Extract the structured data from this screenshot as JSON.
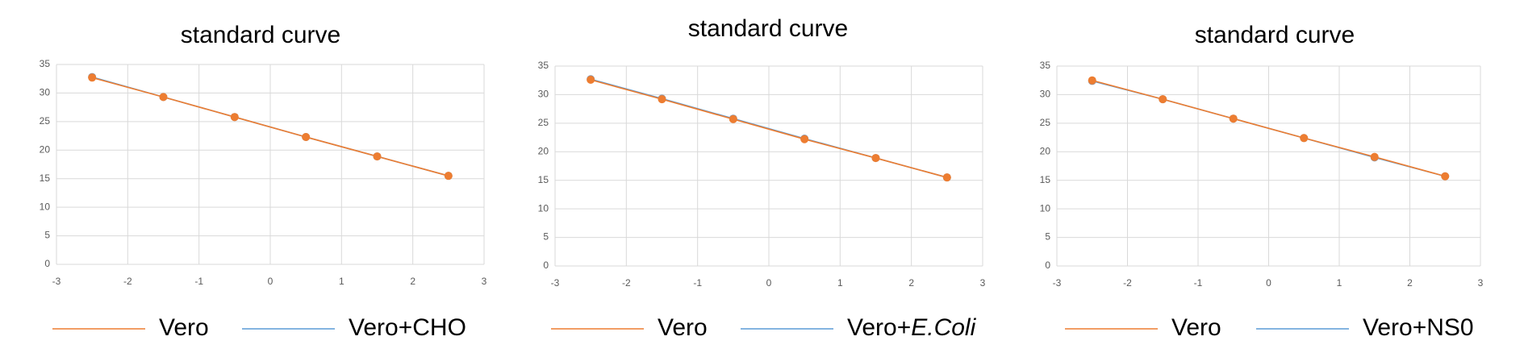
{
  "colors": {
    "vero": "#ED7D31",
    "comparison": "#5B9BD5",
    "grid": "#D9D9D9",
    "axis": "#BFBFBF",
    "marker_comparison": "#8497B0"
  },
  "chart_data": [
    {
      "type": "scatter",
      "title": "standard curve",
      "xlim": [
        -3,
        3
      ],
      "ylim": [
        0,
        35
      ],
      "x_ticks": [
        -3,
        -2,
        -1,
        0,
        1,
        2,
        3
      ],
      "y_ticks": [
        0,
        5,
        10,
        15,
        20,
        25,
        30,
        35
      ],
      "grid": true,
      "legend": "bottom",
      "series": [
        {
          "name": "Vero",
          "x": [
            -2.5,
            -1.5,
            -0.5,
            0.5,
            1.5,
            2.5
          ],
          "y": [
            32.7,
            29.3,
            25.8,
            22.3,
            18.9,
            15.5
          ]
        },
        {
          "name": "Vero+CHO",
          "x": [
            -2.5,
            -1.5,
            -0.5,
            0.5,
            1.5,
            2.5
          ],
          "y": [
            32.8,
            29.3,
            25.8,
            22.3,
            18.9,
            15.5
          ]
        }
      ]
    },
    {
      "type": "scatter",
      "title": "standard curve",
      "xlim": [
        -3,
        3
      ],
      "ylim": [
        0,
        35
      ],
      "x_ticks": [
        -3,
        -2,
        -1,
        0,
        1,
        2,
        3
      ],
      "y_ticks": [
        0,
        5,
        10,
        15,
        20,
        25,
        30,
        35
      ],
      "grid": true,
      "legend": "bottom",
      "series": [
        {
          "name": "Vero",
          "x": [
            -2.5,
            -1.5,
            -0.5,
            0.5,
            1.5,
            2.5
          ],
          "y": [
            32.6,
            29.2,
            25.7,
            22.2,
            18.9,
            15.5
          ]
        },
        {
          "name": "Vero+E.Coli",
          "x": [
            -2.5,
            -1.5,
            -0.5,
            0.5,
            1.5,
            2.5
          ],
          "y": [
            32.7,
            29.3,
            25.8,
            22.3,
            18.9,
            15.5
          ]
        }
      ]
    },
    {
      "type": "scatter",
      "title": "standard curve",
      "xlim": [
        -3,
        3
      ],
      "ylim": [
        0,
        35
      ],
      "x_ticks": [
        -3,
        -2,
        -1,
        0,
        1,
        2,
        3
      ],
      "y_ticks": [
        0,
        5,
        10,
        15,
        20,
        25,
        30,
        35
      ],
      "grid": true,
      "legend": "bottom",
      "series": [
        {
          "name": "Vero",
          "x": [
            -2.5,
            -1.5,
            -0.5,
            0.5,
            1.5,
            2.5
          ],
          "y": [
            32.5,
            29.2,
            25.8,
            22.4,
            19.1,
            15.7
          ]
        },
        {
          "name": "Vero+NS0",
          "x": [
            -2.5,
            -1.5,
            -0.5,
            0.5,
            1.5,
            2.5
          ],
          "y": [
            32.4,
            29.2,
            25.8,
            22.4,
            19.0,
            15.7
          ]
        }
      ]
    }
  ]
}
